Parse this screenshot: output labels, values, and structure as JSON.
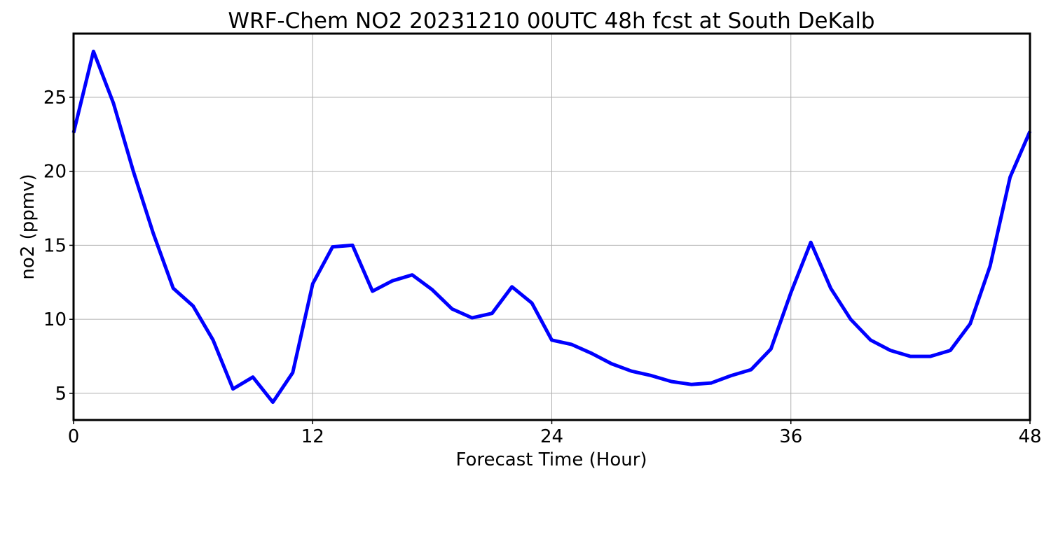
{
  "chart_data": {
    "type": "line",
    "title": "WRF-Chem NO2  20231210 00UTC 48h fcst at South DeKalb",
    "xlabel": "Forecast Time (Hour)",
    "ylabel": "no2  (ppmv)",
    "xlim": [
      0,
      48
    ],
    "ylim": [
      3.2,
      29.3
    ],
    "x_ticks": [
      0,
      12,
      24,
      36,
      48
    ],
    "y_ticks": [
      5,
      10,
      15,
      20,
      25
    ],
    "grid": true,
    "legend": "none",
    "line_color": "#0000ff",
    "series": [
      {
        "x": [
          0,
          1,
          2,
          3,
          4,
          5,
          6,
          7,
          8,
          9,
          10,
          11,
          12,
          13,
          14,
          15,
          16,
          17,
          18,
          19,
          20,
          21,
          22,
          23,
          24,
          25,
          26,
          27,
          28,
          29,
          30,
          31,
          32,
          33,
          34,
          35,
          36,
          37,
          38,
          39,
          40,
          41,
          42,
          43,
          44,
          45,
          46,
          47,
          48
        ],
        "values": [
          22.6,
          28.1,
          24.6,
          20.0,
          15.8,
          12.1,
          10.9,
          8.6,
          5.3,
          6.1,
          4.4,
          6.4,
          12.4,
          14.9,
          15.0,
          11.9,
          12.6,
          13.0,
          12.0,
          10.7,
          10.1,
          10.4,
          12.2,
          11.1,
          8.6,
          8.3,
          7.7,
          7.0,
          6.5,
          6.2,
          5.8,
          5.6,
          5.7,
          6.2,
          6.6,
          8.0,
          11.8,
          15.2,
          12.1,
          10.0,
          8.6,
          7.9,
          7.5,
          7.5,
          7.9,
          9.7,
          13.6,
          19.6,
          22.7
        ]
      }
    ]
  }
}
